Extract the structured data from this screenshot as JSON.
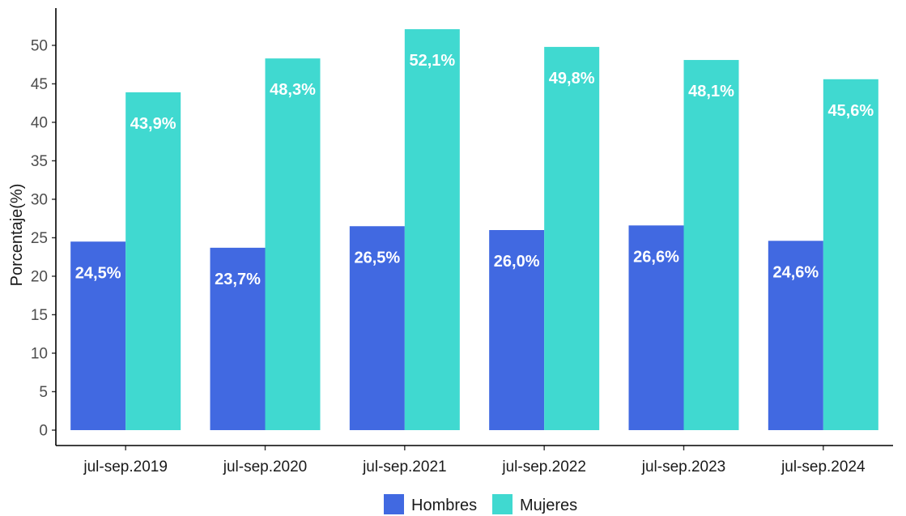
{
  "chart_data": {
    "type": "bar",
    "categories": [
      "jul-sep.2019",
      "jul-sep.2020",
      "jul-sep.2021",
      "jul-sep.2022",
      "jul-sep.2023",
      "jul-sep.2024"
    ],
    "series": [
      {
        "name": "Hombres",
        "color": "#4169E1",
        "values": [
          24.5,
          23.7,
          26.5,
          26.0,
          26.6,
          24.6
        ],
        "labels": [
          "24,5%",
          "23,7%",
          "26,5%",
          "26,0%",
          "26,6%",
          "24,6%"
        ]
      },
      {
        "name": "Mujeres",
        "color": "#40D9D0",
        "values": [
          43.9,
          48.3,
          52.1,
          49.8,
          48.1,
          45.6
        ],
        "labels": [
          "43,9%",
          "48,3%",
          "52,1%",
          "49,8%",
          "48,1%",
          "45,6%"
        ]
      }
    ],
    "title": "",
    "xlabel": "",
    "ylabel": "Porcentaje(%)",
    "ylim": [
      0,
      52.5
    ],
    "yticks": [
      "0",
      "5",
      "10",
      "15",
      "20",
      "25",
      "30",
      "35",
      "40",
      "45",
      "50"
    ],
    "grid": false,
    "legend": "bottom"
  }
}
